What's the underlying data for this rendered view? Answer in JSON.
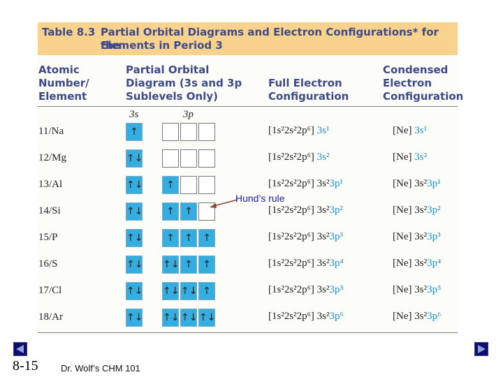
{
  "table": {
    "number": "Table 8.3",
    "title_line1": "Partial Orbital Diagrams and Electron Configurations* for the",
    "title_line2": "Elements in Period 3"
  },
  "headers": {
    "element": [
      "Atomic",
      "Number/",
      "Element"
    ],
    "diagram": [
      "Partial Orbital",
      "Diagram (3s and 3p",
      "Sublevels Only)"
    ],
    "full": [
      "Full Electron",
      "Configuration"
    ],
    "condensed": [
      "Condensed",
      "Electron",
      "Configuration"
    ]
  },
  "sublevels": {
    "s": "3s",
    "p": "3p"
  },
  "rows": [
    {
      "element": "11/Na",
      "s": "↑",
      "p": [
        "",
        "",
        ""
      ],
      "full_core": "[1s²2s²2p⁶] ",
      "full_val": "3s¹",
      "full_tail": "",
      "cond_core": "[Ne] ",
      "cond_val": "3s¹",
      "cond_tail": ""
    },
    {
      "element": "12/Mg",
      "s": "↑↓",
      "p": [
        "",
        "",
        ""
      ],
      "full_core": "[1s²2s²2p⁶] ",
      "full_val": "3s²",
      "full_tail": "",
      "cond_core": "[Ne] ",
      "cond_val": "3s²",
      "cond_tail": ""
    },
    {
      "element": "13/Al",
      "s": "↑↓",
      "p": [
        "↑",
        "",
        ""
      ],
      "full_core": "[1s²2s²2p⁶] 3s²",
      "full_val": "3p¹",
      "full_tail": "",
      "cond_core": "[Ne] 3s²",
      "cond_val": "3p¹",
      "cond_tail": ""
    },
    {
      "element": "14/Si",
      "s": "↑↓",
      "p": [
        "↑",
        "↑",
        ""
      ],
      "full_core": "[1s²2s²2p⁶] 3s²",
      "full_val": "3p²",
      "full_tail": "",
      "cond_core": "[Ne] 3s²",
      "cond_val": "3p²",
      "cond_tail": ""
    },
    {
      "element": "15/P",
      "s": "↑↓",
      "p": [
        "↑",
        "↑",
        "↑"
      ],
      "full_core": "[1s²2s²2p⁶] 3s²",
      "full_val": "3p³",
      "full_tail": "",
      "cond_core": "[Ne] 3s²",
      "cond_val": "3p³",
      "cond_tail": ""
    },
    {
      "element": "16/S",
      "s": "↑↓",
      "p": [
        "↑↓",
        "↑",
        "↑"
      ],
      "full_core": "[1s²2s²2p⁶] 3s²",
      "full_val": "3p⁴",
      "full_tail": "",
      "cond_core": "[Ne] 3s²",
      "cond_val": "3p⁴",
      "cond_tail": ""
    },
    {
      "element": "17/Cl",
      "s": "↑↓",
      "p": [
        "↑↓",
        "↑↓",
        "↑"
      ],
      "full_core": "[1s²2s²2p⁶] 3s²",
      "full_val": "3p⁵",
      "full_tail": "",
      "cond_core": "[Ne] 3s²",
      "cond_val": "3p⁵",
      "cond_tail": ""
    },
    {
      "element": "18/Ar",
      "s": "↑↓",
      "p": [
        "↑↓",
        "↑↓",
        "↑↓"
      ],
      "full_core": "[1s²2s²2p⁶] 3s²",
      "full_val": "3p⁶",
      "full_tail": "",
      "cond_core": "[Ne] 3s²",
      "cond_val": "3p⁶",
      "cond_tail": ""
    }
  ],
  "annotation": "Hund’s rule",
  "footer": {
    "slide_number": "8-15",
    "course": "Dr. Wolf’s CHM 101"
  },
  "nav": {
    "prev_icon": "triangle-left-icon",
    "next_icon": "triangle-right-icon"
  },
  "colors": {
    "title_band": "#f9d38e",
    "header_text": "#3d4a87",
    "orbital_fill": "#34aee0",
    "highlight_text": "#1f8fce",
    "annotation_text": "#1a1aa6",
    "nav_button": "#0d0d6a"
  }
}
